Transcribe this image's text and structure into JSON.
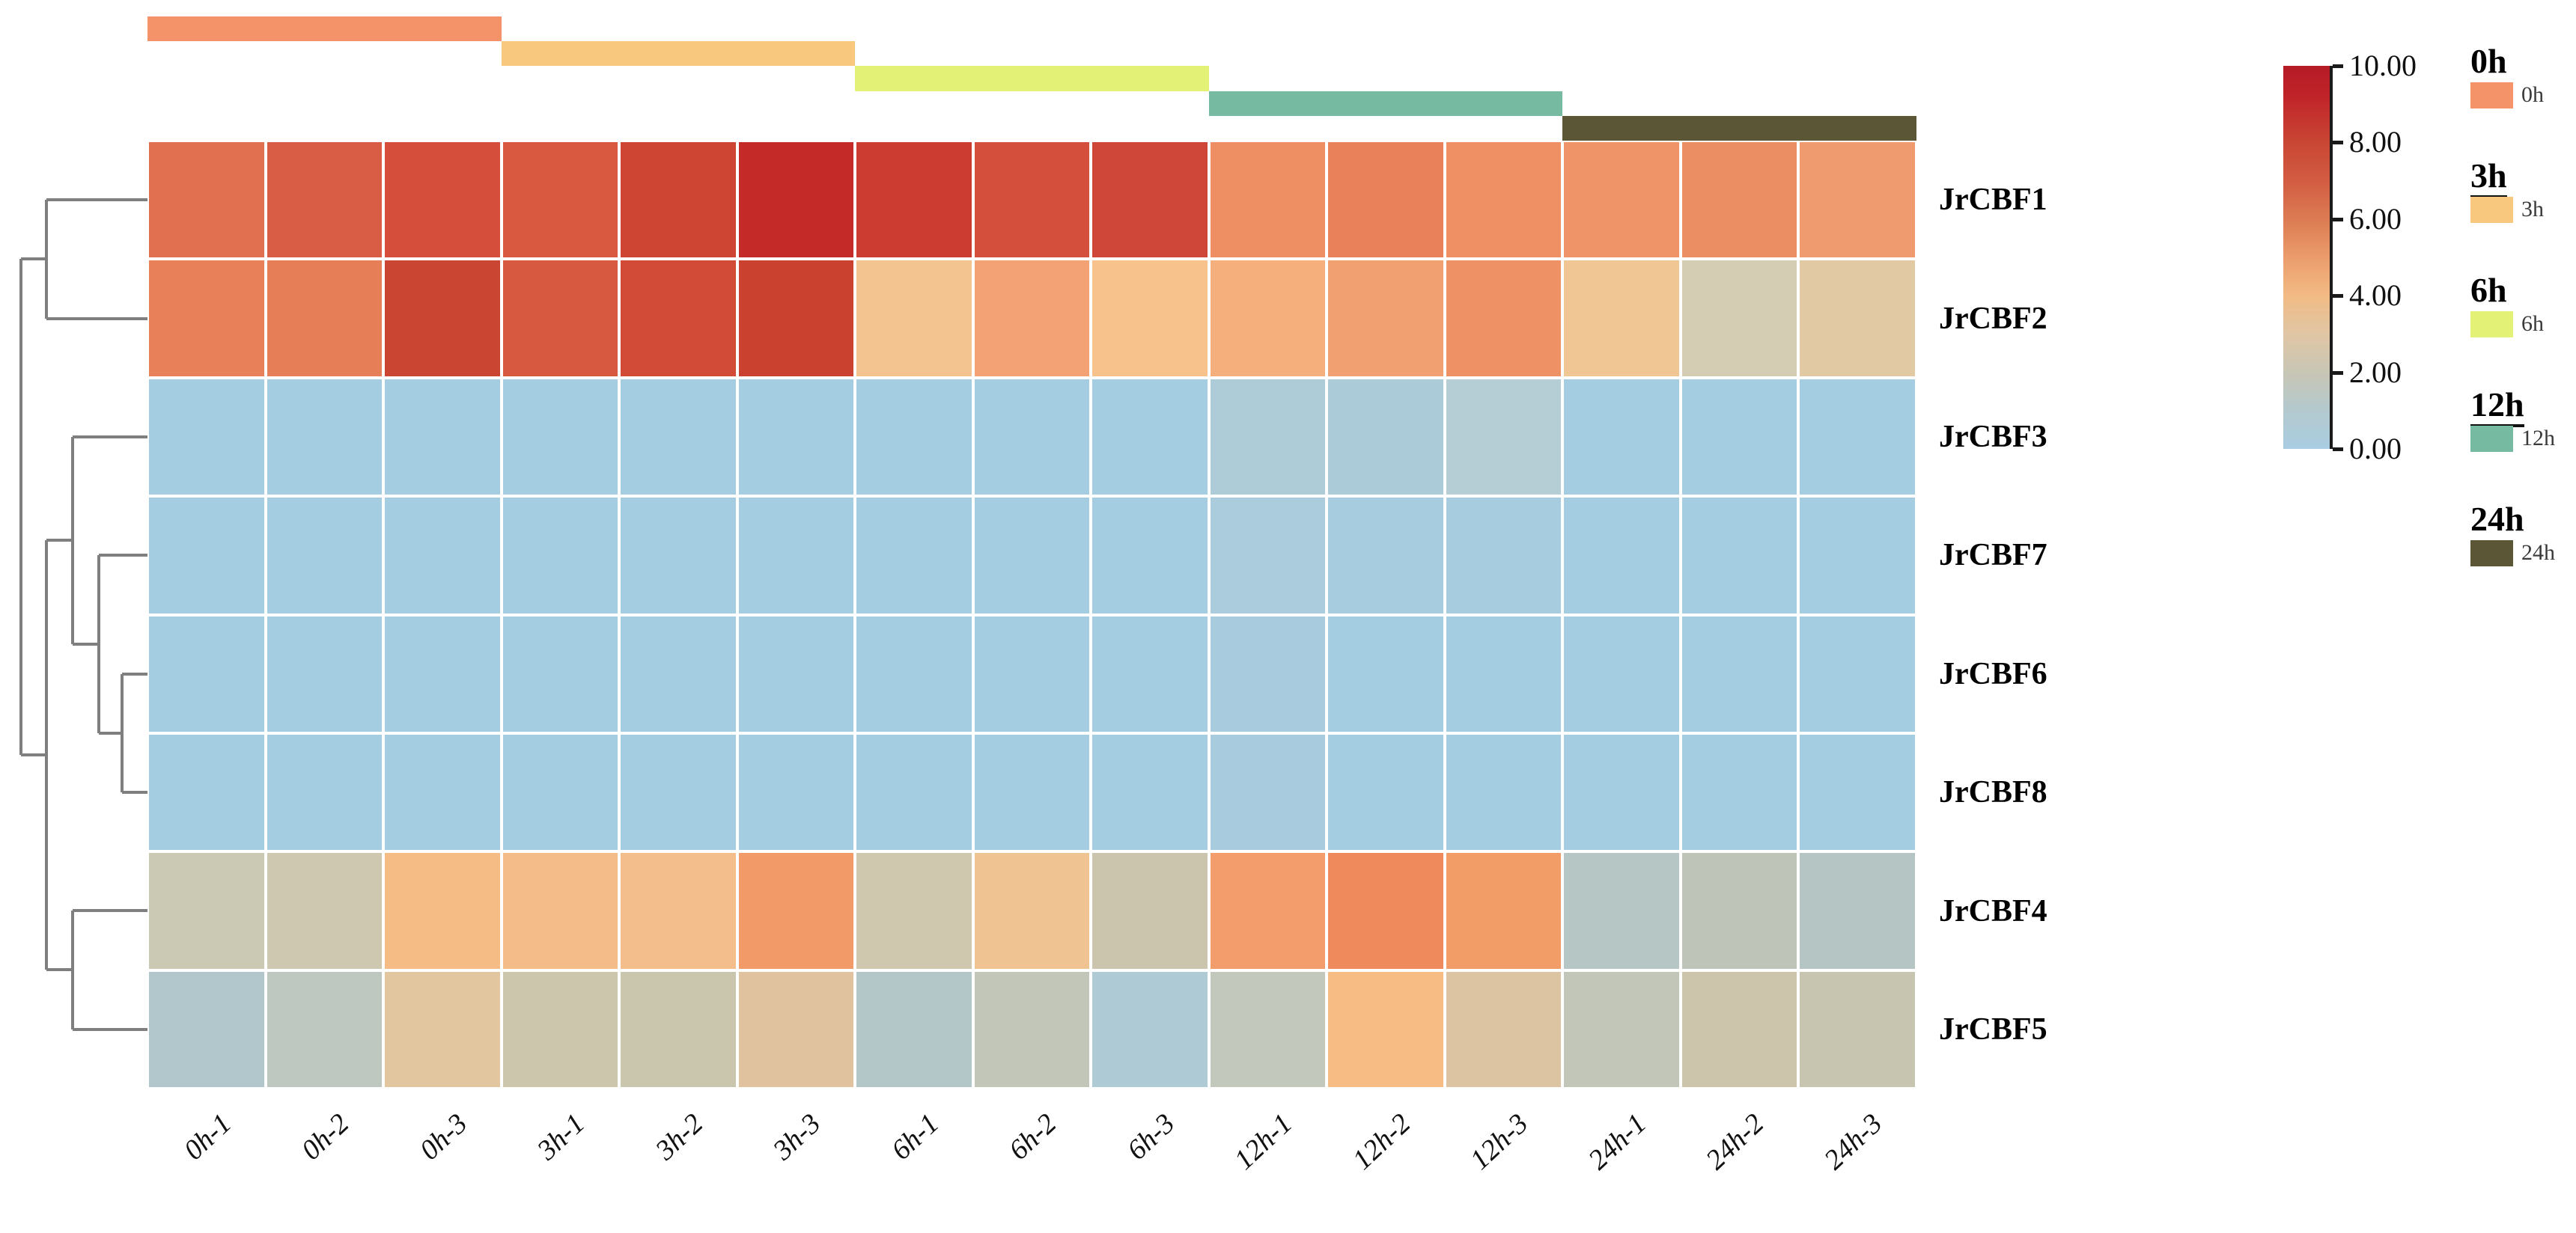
{
  "chart_data": {
    "type": "heatmap",
    "title": "",
    "rows": [
      "JrCBF1",
      "JrCBF2",
      "JrCBF3",
      "JrCBF7",
      "JrCBF6",
      "JrCBF8",
      "JrCBF4",
      "JrCBF5"
    ],
    "columns": [
      "0h-1",
      "0h-2",
      "0h-3",
      "3h-1",
      "3h-2",
      "3h-3",
      "6h-1",
      "6h-2",
      "6h-3",
      "12h-1",
      "12h-2",
      "12h-3",
      "24h-1",
      "24h-2",
      "24h-3"
    ],
    "values": [
      [
        6.2,
        6.9,
        7.4,
        7.0,
        7.9,
        9.0,
        8.4,
        7.3,
        7.7,
        5.1,
        5.5,
        5.1,
        5.0,
        5.2,
        4.8
      ],
      [
        5.6,
        5.7,
        7.9,
        7.0,
        7.6,
        8.0,
        3.7,
        4.6,
        3.8,
        4.3,
        4.7,
        5.1,
        3.5,
        2.4,
        3.0
      ],
      [
        0.2,
        0.2,
        0.2,
        0.2,
        0.2,
        0.2,
        0.2,
        0.2,
        0.2,
        0.5,
        0.4,
        0.8,
        0.2,
        0.2,
        0.2
      ],
      [
        0.2,
        0.2,
        0.2,
        0.2,
        0.2,
        0.2,
        0.2,
        0.2,
        0.2,
        0.4,
        0.3,
        0.3,
        0.2,
        0.2,
        0.2
      ],
      [
        0.2,
        0.2,
        0.2,
        0.2,
        0.2,
        0.2,
        0.2,
        0.2,
        0.2,
        0.3,
        0.2,
        0.2,
        0.2,
        0.2,
        0.2
      ],
      [
        0.2,
        0.2,
        0.2,
        0.2,
        0.2,
        0.2,
        0.2,
        0.2,
        0.2,
        0.3,
        0.2,
        0.2,
        0.2,
        0.2,
        0.2
      ],
      [
        2.2,
        2.3,
        3.9,
        3.9,
        3.8,
        4.8,
        2.4,
        3.6,
        2.3,
        4.7,
        5.3,
        4.7,
        1.3,
        1.7,
        1.2
      ],
      [
        1.0,
        1.6,
        3.0,
        2.3,
        2.2,
        3.0,
        1.1,
        1.8,
        0.7,
        1.7,
        3.9,
        2.8,
        1.8,
        2.3,
        2.0
      ]
    ],
    "cell_colors": [
      [
        "#E07050",
        "#D95C45",
        "#D44E3B",
        "#D85940",
        "#CE4534",
        "#C42A28",
        "#CC3C31",
        "#D4503C",
        "#CF4738",
        "#EE8F63",
        "#E9825B",
        "#EE9063",
        "#EF9468",
        "#EC8E64",
        "#F09B6F"
      ],
      [
        "#E8805A",
        "#E67E58",
        "#CB4533",
        "#D75940",
        "#D14B37",
        "#CB4130",
        "#F3C48F",
        "#F2A274",
        "#F7C28B",
        "#F5AF7D",
        "#F0A071",
        "#EE9164",
        "#F0C794",
        "#D5CDB3",
        "#E1C9A3"
      ],
      [
        "#A5CDE1",
        "#A5CDE1",
        "#A5CDE1",
        "#A5CDE1",
        "#A5CDE1",
        "#A5CDE1",
        "#A5CDE1",
        "#A5CDE1",
        "#A5CDE1",
        "#AECCD8",
        "#ACCBD8",
        "#B5CDD4",
        "#A5CDE1",
        "#A5CDE1",
        "#A5CDE1"
      ],
      [
        "#A5CDE1",
        "#A5CDE1",
        "#A5CDE1",
        "#A5CDE1",
        "#A5CDE1",
        "#A5CDE1",
        "#A5CDE1",
        "#A5CDE1",
        "#A5CDE1",
        "#AACCDC",
        "#A7CCDF",
        "#A7CCDF",
        "#A5CDE1",
        "#A5CDE1",
        "#A5CDE1"
      ],
      [
        "#A5CDE1",
        "#A5CDE1",
        "#A5CDE1",
        "#A5CDE1",
        "#A5CDE1",
        "#A5CDE1",
        "#A5CDE1",
        "#A5CDE1",
        "#A5CDE1",
        "#A8CCDD",
        "#A5CDE1",
        "#A5CDE1",
        "#A5CDE1",
        "#A5CDE1",
        "#A5CDE1"
      ],
      [
        "#A5CDE1",
        "#A5CDE1",
        "#A5CDE1",
        "#A5CDE1",
        "#A5CDE1",
        "#A5CDE1",
        "#A5CDE1",
        "#A5CDE1",
        "#A5CDE1",
        "#A8CCDD",
        "#A5CDE1",
        "#A5CDE1",
        "#A5CDE1",
        "#A5CDE1",
        "#A5CDE1"
      ],
      [
        "#CBC8B3",
        "#CEC8B0",
        "#F6BC85",
        "#F4BC88",
        "#F3BE8C",
        "#F29A68",
        "#CFC7AE",
        "#F0C492",
        "#CBC5AE",
        "#F29D6B",
        "#EE8A5C",
        "#F29C68",
        "#B6C6C4",
        "#BEC4B8",
        "#B4C5C4"
      ],
      [
        "#B2C7CC",
        "#BEC8C0",
        "#E2C6A0",
        "#CCC6AC",
        "#CAC6AE",
        "#E0C29E",
        "#B4C7C8",
        "#C2C6B8",
        "#AECAD4",
        "#C2C8BC",
        "#F6BC84",
        "#DCC4A2",
        "#C2C6B8",
        "#CCC5AB",
        "#C7C5B0"
      ]
    ],
    "value_range": [
      0,
      10
    ],
    "grid_color": "#ffffff",
    "column_groups": [
      {
        "label": "0h",
        "color": "#F4936A",
        "columns": [
          "0h-1",
          "0h-2",
          "0h-3"
        ]
      },
      {
        "label": "3h",
        "color": "#F8C87E",
        "columns": [
          "3h-1",
          "3h-2",
          "3h-3"
        ]
      },
      {
        "label": "6h",
        "color": "#E3F277",
        "columns": [
          "6h-1",
          "6h-2",
          "6h-3"
        ]
      },
      {
        "label": "12h",
        "color": "#77BAA2",
        "columns": [
          "12h-1",
          "12h-2",
          "12h-3"
        ]
      },
      {
        "label": "24h",
        "color": "#5B5636",
        "columns": [
          "24h-1",
          "24h-2",
          "24h-3"
        ]
      }
    ],
    "colorbar": {
      "tick_labels": [
        "10.00",
        "8.00",
        "6.00",
        "4.00",
        "2.00",
        "0.00"
      ],
      "gradient_top_to_bottom": [
        {
          "pos": 0.0,
          "color": "#B51B26"
        },
        {
          "pos": 0.08,
          "color": "#C02429"
        },
        {
          "pos": 0.2,
          "color": "#C94634"
        },
        {
          "pos": 0.3,
          "color": "#D25C42"
        },
        {
          "pos": 0.4,
          "color": "#DC7B53"
        },
        {
          "pos": 0.5,
          "color": "#EB9C6C"
        },
        {
          "pos": 0.6,
          "color": "#F2BB85"
        },
        {
          "pos": 0.7,
          "color": "#E0C6A4"
        },
        {
          "pos": 0.8,
          "color": "#C8C6B5"
        },
        {
          "pos": 0.9,
          "color": "#B4C9CE"
        },
        {
          "pos": 1.0,
          "color": "#A9CDE2"
        }
      ]
    },
    "legend": {
      "entries": [
        {
          "title": "0h",
          "underline": false,
          "swatch_color": "#F4936A",
          "swatch_label": "0h"
        },
        {
          "title": "3h",
          "underline": true,
          "swatch_color": "#F8C87E",
          "swatch_label": "3h"
        },
        {
          "title": "6h",
          "underline": false,
          "swatch_color": "#E3F277",
          "swatch_label": "6h"
        },
        {
          "title": "12h",
          "underline": true,
          "swatch_color": "#77BAA2",
          "swatch_label": "12h"
        },
        {
          "title": "24h",
          "underline": false,
          "swatch_color": "#5B5636",
          "swatch_label": "24h"
        }
      ]
    },
    "dendrogram": {
      "row_order": [
        "JrCBF1",
        "JrCBF2",
        "JrCBF3",
        "JrCBF7",
        "JrCBF6",
        "JrCBF8",
        "JrCBF4",
        "JrCBF5"
      ],
      "tree": "((JrCBF1,JrCBF2),((JrCBF3,(JrCBF7,(JrCBF6,JrCBF8))),(JrCBF4,JrCBF5)))",
      "line_color": "#7F7F7F",
      "segments": [
        [
          62,
          267,
          197,
          267
        ],
        [
          62,
          426,
          197,
          426
        ],
        [
          62,
          267,
          62,
          426
        ],
        [
          163,
          901,
          197,
          901
        ],
        [
          163,
          1059,
          197,
          1059
        ],
        [
          163,
          901,
          163,
          1059
        ],
        [
          132,
          742,
          197,
          742
        ],
        [
          132,
          980,
          163,
          980
        ],
        [
          132,
          742,
          132,
          980
        ],
        [
          97,
          584,
          197,
          584
        ],
        [
          97,
          861,
          132,
          861
        ],
        [
          97,
          584,
          97,
          861
        ],
        [
          97,
          1217,
          197,
          1217
        ],
        [
          97,
          1376,
          197,
          1376
        ],
        [
          97,
          1217,
          97,
          1376
        ],
        [
          62,
          722,
          97,
          722
        ],
        [
          62,
          1296,
          97,
          1296
        ],
        [
          62,
          722,
          62,
          1296
        ],
        [
          28,
          346,
          62,
          346
        ],
        [
          28,
          1009,
          62,
          1009
        ],
        [
          28,
          346,
          28,
          1009
        ]
      ]
    }
  }
}
